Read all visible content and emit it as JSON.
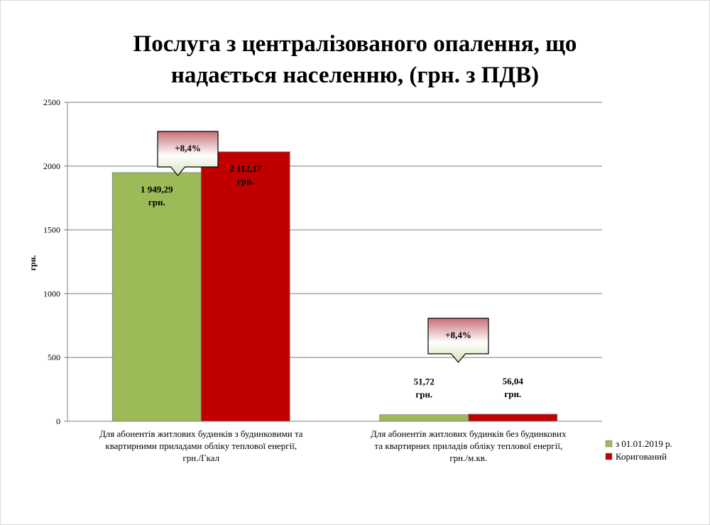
{
  "chart_data": {
    "type": "bar",
    "title": "Послуга з централізованого опалення, що надається населенню, (грн. з ПДВ)",
    "title_lines": [
      "Послуга з централізованого опалення, що",
      "надається населенню, (грн. з ПДВ)"
    ],
    "ylabel": "грн.",
    "ylim": [
      0,
      2500
    ],
    "yticks": [
      "0",
      "500",
      "1000",
      "1500",
      "2000",
      "2500"
    ],
    "categories": [
      "Для абонентів житлових будинків з будинковими та квартирними приладами обліку теплової енергії, грн./Гкал",
      "Для абонентів житлових будинків без будинкових та квартирних приладів обліку теплової енергії, грн./м.кв."
    ],
    "category_lines": [
      [
        "Для абонентів житлових будинків з будинковими та",
        "квартирними приладами обліку теплової енергії,",
        "грн./Гкал"
      ],
      [
        "Для абонентів житлових будинків без будинкових",
        "та квартирних приладів обліку теплової енергії,",
        "грн./м.кв."
      ]
    ],
    "series": [
      {
        "name": "з 01.01.2019 р.",
        "color": "#9bbb59",
        "values": [
          1949.29,
          51.72
        ],
        "labels": [
          [
            "1 949,29",
            "грн."
          ],
          [
            "51,72",
            "грн."
          ]
        ]
      },
      {
        "name": "Коригований",
        "color": "#c00000",
        "values": [
          2112.17,
          56.04
        ],
        "labels": [
          [
            "2 112,17",
            "грн."
          ],
          [
            "56,04",
            "грн."
          ]
        ]
      }
    ],
    "annotations": [
      "+8,4%",
      "+8,4%"
    ],
    "grid": true,
    "legend": "bottom-right"
  }
}
